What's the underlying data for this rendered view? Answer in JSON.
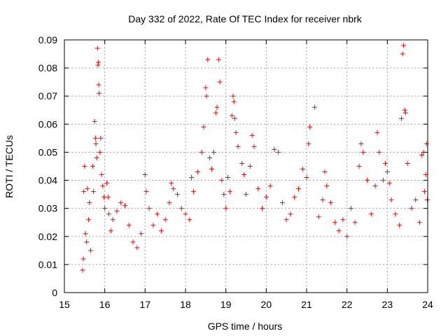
{
  "chart_data": {
    "type": "scatter",
    "title": "Day 332 of 2022, Rate Of TEC Index for receiver nbrk",
    "xlabel": "GPS time / hours",
    "ylabel": "ROTI / TECUs",
    "xlim": [
      15,
      24
    ],
    "ylim": [
      0,
      0.09
    ],
    "x_ticks": [
      "15",
      "16",
      "17",
      "18",
      "19",
      "20",
      "21",
      "22",
      "23",
      "24"
    ],
    "y_ticks": [
      "0",
      "0.01",
      "0.02",
      "0.03",
      "0.04",
      "0.05",
      "0.06",
      "0.07",
      "0.08",
      "0.09"
    ],
    "grid": true,
    "legend": "none",
    "marker": "plus",
    "color": "#ff0000",
    "series": [
      {
        "points": [
          [
            15.45,
            0.008
          ],
          [
            15.47,
            0.012
          ],
          [
            15.48,
            0.036
          ],
          [
            15.5,
            0.045
          ],
          [
            15.52,
            0.021
          ],
          [
            15.55,
            0.018
          ],
          [
            15.57,
            0.037
          ],
          [
            15.6,
            0.026
          ],
          [
            15.62,
            0.032
          ],
          [
            15.65,
            0.015
          ],
          [
            15.7,
            0.045
          ],
          [
            15.72,
            0.036
          ],
          [
            15.75,
            0.061
          ],
          [
            15.77,
            0.055
          ],
          [
            15.78,
            0.053
          ],
          [
            15.8,
            0.048
          ],
          [
            15.82,
            0.087
          ],
          [
            15.83,
            0.081
          ],
          [
            15.84,
            0.082
          ],
          [
            15.85,
            0.074
          ],
          [
            15.86,
            0.071
          ],
          [
            15.88,
            0.05
          ],
          [
            15.9,
            0.055
          ],
          [
            15.92,
            0.042
          ],
          [
            15.95,
            0.038
          ],
          [
            15.98,
            0.034
          ],
          [
            16.0,
            0.03
          ],
          [
            16.05,
            0.039
          ],
          [
            16.08,
            0.034
          ],
          [
            16.1,
            0.028
          ],
          [
            16.15,
            0.022
          ],
          [
            16.2,
            0.026
          ],
          [
            16.3,
            0.029
          ],
          [
            16.4,
            0.032
          ],
          [
            16.5,
            0.031
          ],
          [
            16.6,
            0.024
          ],
          [
            16.7,
            0.018
          ],
          [
            16.8,
            0.016
          ],
          [
            16.9,
            0.021
          ],
          [
            17.0,
            0.042
          ],
          [
            17.03,
            0.036
          ],
          [
            17.1,
            0.03
          ],
          [
            17.2,
            0.024
          ],
          [
            17.3,
            0.028
          ],
          [
            17.4,
            0.022
          ],
          [
            17.5,
            0.026
          ],
          [
            17.6,
            0.032
          ],
          [
            17.65,
            0.039
          ],
          [
            17.7,
            0.037
          ],
          [
            17.8,
            0.035
          ],
          [
            17.9,
            0.03
          ],
          [
            18.0,
            0.028
          ],
          [
            18.1,
            0.026
          ],
          [
            18.15,
            0.041
          ],
          [
            18.2,
            0.036
          ],
          [
            18.3,
            0.043
          ],
          [
            18.4,
            0.05
          ],
          [
            18.45,
            0.059
          ],
          [
            18.5,
            0.073
          ],
          [
            18.52,
            0.07
          ],
          [
            18.55,
            0.083
          ],
          [
            18.6,
            0.048
          ],
          [
            18.65,
            0.044
          ],
          [
            18.7,
            0.05
          ],
          [
            18.75,
            0.064
          ],
          [
            18.78,
            0.066
          ],
          [
            18.82,
            0.083
          ],
          [
            18.85,
            0.075
          ],
          [
            18.9,
            0.04
          ],
          [
            18.95,
            0.035
          ],
          [
            19.0,
            0.03
          ],
          [
            19.05,
            0.041
          ],
          [
            19.1,
            0.036
          ],
          [
            19.15,
            0.063
          ],
          [
            19.18,
            0.07
          ],
          [
            19.2,
            0.068
          ],
          [
            19.22,
            0.062
          ],
          [
            19.25,
            0.057
          ],
          [
            19.3,
            0.052
          ],
          [
            19.4,
            0.046
          ],
          [
            19.45,
            0.042
          ],
          [
            19.5,
            0.035
          ],
          [
            19.6,
            0.045
          ],
          [
            19.65,
            0.056
          ],
          [
            19.7,
            0.052
          ],
          [
            19.8,
            0.037
          ],
          [
            19.9,
            0.03
          ],
          [
            20.0,
            0.034
          ],
          [
            20.1,
            0.038
          ],
          [
            20.2,
            0.051
          ],
          [
            20.3,
            0.05
          ],
          [
            20.4,
            0.032
          ],
          [
            20.5,
            0.026
          ],
          [
            20.6,
            0.028
          ],
          [
            20.7,
            0.034
          ],
          [
            20.8,
            0.037
          ],
          [
            20.9,
            0.044
          ],
          [
            21.0,
            0.041
          ],
          [
            21.05,
            0.053
          ],
          [
            21.08,
            0.059
          ],
          [
            21.2,
            0.066
          ],
          [
            21.3,
            0.027
          ],
          [
            21.4,
            0.033
          ],
          [
            21.45,
            0.043
          ],
          [
            21.5,
            0.038
          ],
          [
            21.6,
            0.032
          ],
          [
            21.7,
            0.025
          ],
          [
            21.8,
            0.022
          ],
          [
            21.9,
            0.026
          ],
          [
            22.0,
            0.02
          ],
          [
            22.1,
            0.03
          ],
          [
            22.2,
            0.025
          ],
          [
            22.3,
            0.045
          ],
          [
            22.35,
            0.053
          ],
          [
            22.4,
            0.05
          ],
          [
            22.5,
            0.04
          ],
          [
            22.6,
            0.028
          ],
          [
            22.7,
            0.038
          ],
          [
            22.75,
            0.057
          ],
          [
            22.8,
            0.05
          ],
          [
            22.9,
            0.04
          ],
          [
            22.95,
            0.046
          ],
          [
            23.0,
            0.043
          ],
          [
            23.05,
            0.039
          ],
          [
            23.1,
            0.033
          ],
          [
            23.2,
            0.028
          ],
          [
            23.3,
            0.024
          ],
          [
            23.35,
            0.062
          ],
          [
            23.38,
            0.085
          ],
          [
            23.4,
            0.088
          ],
          [
            23.43,
            0.065
          ],
          [
            23.45,
            0.064
          ],
          [
            23.5,
            0.046
          ],
          [
            23.6,
            0.03
          ],
          [
            23.7,
            0.033
          ],
          [
            23.8,
            0.025
          ],
          [
            23.85,
            0.049
          ],
          [
            23.9,
            0.05
          ],
          [
            23.92,
            0.036
          ],
          [
            23.95,
            0.042
          ],
          [
            23.97,
            0.053
          ],
          [
            23.99,
            0.033
          ]
        ]
      }
    ]
  }
}
